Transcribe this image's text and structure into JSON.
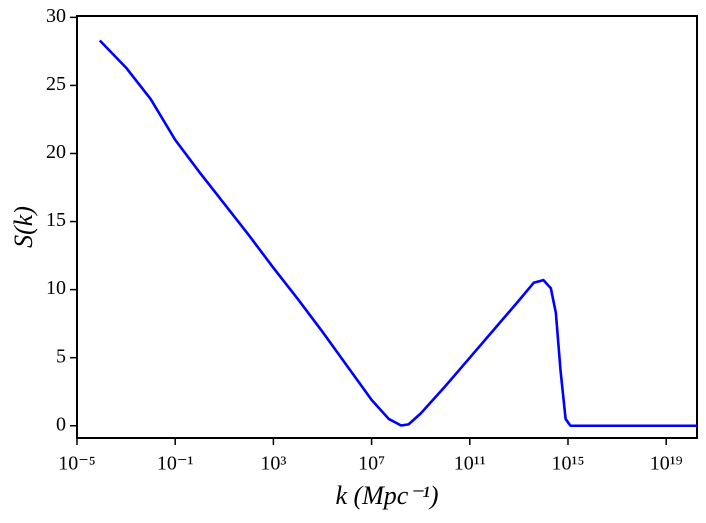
{
  "chart_data": {
    "type": "line",
    "x_label": "k (Mpc⁻¹)",
    "y_label": "S(k)",
    "x": [
      8.5e-05,
      0.001,
      0.01,
      0.1,
      1,
      10,
      100,
      1000,
      10000,
      100000,
      1000000,
      10000000,
      50000000,
      160000000,
      320000000,
      1000000000,
      10000000000,
      100000000000,
      1000000000000,
      10000000000000,
      40000000000000,
      100000000000000,
      200000000000000,
      320000000000000,
      500000000000000,
      800000000000000,
      1260000000000000,
      10000000000000000,
      1000000000000000000,
      180000000000000000000
    ],
    "series": [
      {
        "color": "#0000ff",
        "values": [
          28.3,
          26.3,
          24.0,
          21.0,
          18.6,
          16.3,
          14.0,
          11.6,
          9.3,
          6.9,
          4.4,
          1.9,
          0.5,
          0.02,
          0.1,
          0.9,
          2.9,
          5.0,
          7.1,
          9.2,
          10.5,
          10.7,
          10.1,
          8.3,
          4.0,
          0.5,
          0,
          0,
          0,
          0
        ]
      }
    ],
    "x_log": true,
    "xlim": [
      1e-05,
      180000000000000000000
    ],
    "ylim": [
      -0.9,
      30.1
    ],
    "xticks": [
      {
        "value": 1e-05,
        "label": "10⁻⁵"
      },
      {
        "value": 0.1,
        "label": "10⁻¹"
      },
      {
        "value": 1000,
        "label": "10³"
      },
      {
        "value": 10000000,
        "label": "10⁷"
      },
      {
        "value": 100000000000,
        "label": "10¹¹"
      },
      {
        "value": 1000000000000000,
        "label": "10¹⁵"
      },
      {
        "value": 10000000000000000000,
        "label": "10¹⁹"
      }
    ],
    "yticks": [
      0,
      5,
      10,
      15,
      20,
      25,
      30
    ]
  }
}
